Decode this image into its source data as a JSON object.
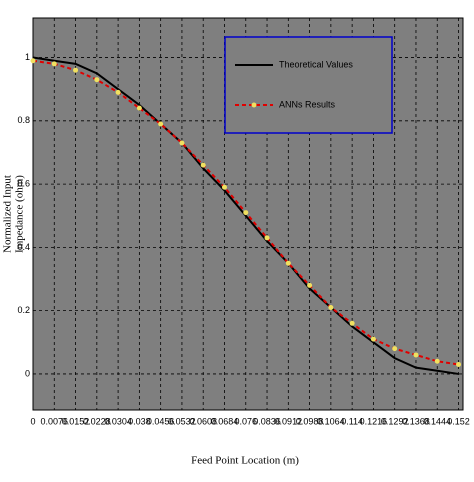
{
  "chart_data": {
    "type": "line",
    "xlabel": "Feed Point Location (m)",
    "ylabel": [
      "Normalized Input",
      "Impedance (ohm)"
    ],
    "x": [
      0,
      0.0076,
      0.0152,
      0.0228,
      0.0304,
      0.038,
      0.0456,
      0.0532,
      0.0608,
      0.0684,
      0.076,
      0.0836,
      0.0912,
      0.0988,
      0.1064,
      0.114,
      0.1216,
      0.1292,
      0.1368,
      0.1444,
      0.152
    ],
    "series": [
      {
        "name": "Theoretical Values",
        "color": "#000000",
        "dashed": false,
        "markers": false,
        "values": [
          1,
          0.99,
          0.98,
          0.95,
          0.9,
          0.85,
          0.79,
          0.73,
          0.65,
          0.58,
          0.5,
          0.42,
          0.35,
          0.27,
          0.21,
          0.15,
          0.1,
          0.05,
          0.02,
          0.01,
          0
        ]
      },
      {
        "name": "ANNs Results",
        "color": "#e00000",
        "dashed": true,
        "markers": true,
        "marker_color": "#f0e060",
        "values": [
          0.99,
          0.98,
          0.96,
          0.93,
          0.89,
          0.84,
          0.79,
          0.73,
          0.66,
          0.59,
          0.51,
          0.43,
          0.35,
          0.28,
          0.21,
          0.16,
          0.11,
          0.08,
          0.06,
          0.04,
          0.03
        ]
      }
    ],
    "xlim": [
      0,
      0.1536
    ],
    "ylim": [
      -0.114,
      1.125
    ],
    "xticks": [
      0,
      0.0076,
      0.0152,
      0.0228,
      0.0304,
      0.038,
      0.0456,
      0.0532,
      0.0608,
      0.0684,
      0.076,
      0.0836,
      0.0912,
      0.0988,
      0.1064,
      0.114,
      0.1216,
      0.1292,
      0.1368,
      0.1444,
      0.152
    ],
    "yticks": [
      0,
      0.2,
      0.4,
      0.6,
      0.8,
      1
    ],
    "grid": true,
    "legend": "top-right"
  }
}
